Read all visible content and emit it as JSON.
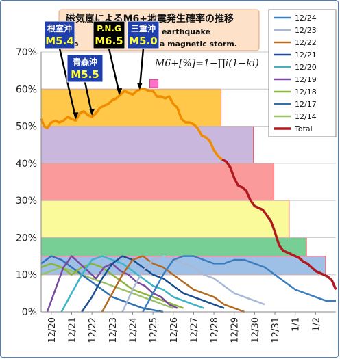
{
  "chart_data": {
    "type": "line",
    "title": "磁気嵐によるM6+地震発生確率の推移",
    "subtitle_lines": [
      "ns",
      "earthquake",
      "rro",
      "by a magnetic storm."
    ],
    "formula": "M6+[%]=1−∏i(1−ki)",
    "x_tick_labels": [
      "12/20",
      "12/21",
      "12/22",
      "12/23",
      "12/24",
      "12/25",
      "12/26",
      "12/27",
      "12/28",
      "12/29",
      "12/30",
      "12/31",
      "1/1",
      "1/2"
    ],
    "y_tick_labels": [
      "0%",
      "10%",
      "20%",
      "30%",
      "40%",
      "50%",
      "60%",
      "70%"
    ],
    "ylim": [
      0,
      70
    ],
    "xlim": [
      0,
      14.5
    ],
    "legend_position": "right",
    "legend": [
      {
        "label": "12/24",
        "color": "#3a7dbf"
      },
      {
        "label": "12/23",
        "color": "#a9b8d6"
      },
      {
        "label": "12/22",
        "color": "#b4691f"
      },
      {
        "label": "12/21",
        "color": "#1a4d8f"
      },
      {
        "label": "12/20",
        "color": "#3cb4c8"
      },
      {
        "label": "12/19",
        "color": "#7a4a9e"
      },
      {
        "label": "12/18",
        "color": "#8cb43c"
      },
      {
        "label": "12/17",
        "color": "#2f6fb4"
      },
      {
        "label": "12/14",
        "color": "#99c266"
      },
      {
        "label": "Total",
        "color": "#b0191e"
      }
    ],
    "bands": [
      {
        "x0": 0,
        "x1": 8.85,
        "y0": 50,
        "y1": 60,
        "fill": "#ffc84a"
      },
      {
        "x0": 0,
        "x1": 10.45,
        "y0": 40,
        "y1": 50,
        "fill": "#c9b7dd"
      },
      {
        "x0": 0,
        "x1": 11.45,
        "y0": 30,
        "y1": 40,
        "fill": "#fb9a9a"
      },
      {
        "x0": 0,
        "x1": 12.2,
        "y0": 20,
        "y1": 30,
        "fill": "#fafa9a"
      },
      {
        "x0": 0,
        "x1": 13.05,
        "y0": 15,
        "y1": 20,
        "fill": "#77cf95"
      },
      {
        "x0": 0,
        "x1": 14.0,
        "y0": 10,
        "y1": 15,
        "fill": "#9fc0e6"
      }
    ],
    "total": {
      "name": "Total",
      "x": [
        0,
        0.15,
        0.3,
        0.5,
        0.7,
        0.9,
        1.1,
        1.3,
        1.5,
        1.7,
        1.9,
        2.1,
        2.3,
        2.5,
        2.7,
        2.9,
        3.1,
        3.3,
        3.5,
        3.7,
        3.9,
        4.1,
        4.3,
        4.5,
        4.7,
        4.9,
        5.1,
        5.3,
        5.5,
        5.7,
        5.9,
        6.1,
        6.3,
        6.5,
        6.7,
        6.9,
        7.1,
        7.3,
        7.5,
        7.7,
        7.9,
        8.1,
        8.3,
        8.5,
        8.7,
        8.9,
        9.1,
        9.3,
        9.5,
        9.7,
        9.9,
        10.1,
        10.3,
        10.5,
        10.7,
        10.9,
        11.1,
        11.3,
        11.5,
        11.7,
        11.9,
        12.1,
        12.3,
        12.5,
        12.7,
        12.9,
        13.1,
        13.3,
        13.5,
        13.7,
        13.9,
        14.1,
        14.3,
        14.5
      ],
      "values": [
        52,
        50,
        49.5,
        51,
        51.5,
        51,
        51.5,
        52.5,
        52,
        51.5,
        53.5,
        54,
        53,
        52.5,
        53.5,
        55,
        55.5,
        56,
        57,
        57.5,
        58.5,
        59.5,
        59,
        58.5,
        59.5,
        60,
        60,
        59.5,
        59.5,
        58,
        58,
        57.5,
        58,
        56,
        55,
        52,
        51,
        51,
        50.5,
        49.5,
        47.5,
        47,
        46,
        43.5,
        42,
        41,
        40.5,
        39,
        36,
        34,
        33.5,
        32.5,
        30,
        28.5,
        28,
        27.5,
        26,
        24.5,
        21.5,
        18,
        16.5,
        16,
        15.5,
        15,
        14.5,
        13.5,
        13,
        12,
        11,
        10.5,
        10,
        9.5,
        8.5,
        6
      ]
    },
    "total_style": {
      "before": "#f08c00",
      "after": "#b0191e",
      "split_x": 8.9
    },
    "series": [
      {
        "name": "12/14",
        "color": "#99c266",
        "x": [
          0,
          0.5,
          1.0,
          1.5,
          2.0,
          2.5,
          3.0,
          3.5,
          4.0,
          4.5,
          5.0,
          5.5,
          6.0,
          6.5
        ],
        "values": [
          10,
          11,
          12,
          11,
          10,
          9,
          8,
          7,
          6,
          5,
          4,
          3,
          2,
          1
        ]
      },
      {
        "name": "12/17",
        "color": "#2f6fb4",
        "x": [
          0,
          0.5,
          1.0,
          1.5,
          2.0,
          2.5,
          3.0,
          3.5,
          4.0,
          4.5,
          5.0,
          5.5,
          6.0
        ],
        "values": [
          13,
          15,
          14,
          12,
          10,
          8,
          6,
          4,
          3,
          2,
          1,
          0.5,
          0
        ]
      },
      {
        "name": "12/18",
        "color": "#8cb43c",
        "x": [
          0,
          0.5,
          1.0,
          1.5,
          2.0,
          2.5,
          3.0,
          3.5,
          4.0,
          4.5,
          5.0,
          5.5,
          6.0,
          6.5,
          7.0
        ],
        "values": [
          12,
          13,
          12,
          10,
          12,
          13,
          12,
          10,
          8,
          6,
          5,
          4,
          3,
          2,
          1
        ]
      },
      {
        "name": "12/19",
        "color": "#7a4a9e",
        "x": [
          0.3,
          0.7,
          1.1,
          1.5,
          1.9,
          2.3,
          2.7,
          3.1,
          3.5,
          3.9,
          4.3,
          4.7,
          5.1,
          5.5,
          5.9,
          6.3,
          6.7
        ],
        "values": [
          0,
          6,
          12,
          15,
          13,
          11,
          9,
          12,
          13,
          11,
          10,
          8,
          7,
          5,
          4,
          2,
          1
        ]
      },
      {
        "name": "12/20",
        "color": "#3cb4c8",
        "x": [
          1.0,
          1.5,
          2.0,
          2.5,
          3.0,
          3.5,
          4.0,
          4.5,
          5.0,
          5.5,
          6.0,
          6.5,
          7.0,
          7.5,
          8.0
        ],
        "values": [
          0,
          5,
          10,
          14,
          15,
          14,
          13,
          11,
          9,
          7,
          6,
          4,
          3,
          2,
          1
        ]
      },
      {
        "name": "12/21",
        "color": "#1a4d8f",
        "x": [
          2.0,
          2.5,
          3.0,
          3.5,
          4.0,
          4.5,
          5.0,
          5.5,
          6.0,
          6.5,
          7.0,
          7.5,
          8.0,
          8.5,
          9.0
        ],
        "values": [
          0,
          4,
          9,
          13,
          15,
          14,
          12,
          10,
          9,
          7,
          5,
          4,
          3,
          2,
          1
        ]
      },
      {
        "name": "12/22",
        "color": "#b4691f",
        "x": [
          3.0,
          3.5,
          4.0,
          4.5,
          5.0,
          5.5,
          6.0,
          6.5,
          7.0,
          7.5,
          8.0,
          8.5,
          9.0,
          9.5,
          10.0
        ],
        "values": [
          0,
          5,
          10,
          14,
          15,
          13,
          12,
          10,
          8,
          6,
          5,
          4,
          2,
          1,
          0
        ]
      },
      {
        "name": "12/23",
        "color": "#a9b8d6",
        "x": [
          4.0,
          4.5,
          5.0,
          5.5,
          6.0,
          6.5,
          7.0,
          7.5,
          8.0,
          8.5,
          9.0,
          9.5,
          10.0,
          10.5,
          11.0
        ],
        "values": [
          0,
          6,
          11,
          14,
          15,
          14,
          13,
          12,
          10,
          9,
          7,
          5,
          4,
          3,
          2
        ]
      },
      {
        "name": "12/24",
        "color": "#3a7dbf",
        "x": [
          5.0,
          5.5,
          6.0,
          6.5,
          7.0,
          7.5,
          8.0,
          8.5,
          9.0,
          9.5,
          10.0,
          10.5,
          11.0,
          11.5,
          12.0,
          12.5,
          13.0,
          13.5,
          14.0,
          14.5
        ],
        "values": [
          0,
          5,
          10,
          14,
          15,
          15,
          14,
          13,
          13,
          14,
          14,
          13,
          12,
          10,
          8,
          6,
          5,
          4,
          3,
          3
        ]
      }
    ],
    "events": [
      {
        "region": "根室沖",
        "magnitude": "M5.4",
        "x": 1.7,
        "y": 51.5,
        "box": "navy"
      },
      {
        "region": "青森沖",
        "magnitude": "M5.5",
        "x": 2.5,
        "y": 52.5,
        "box": "navy"
      },
      {
        "region": "P.N.G",
        "magnitude": "M6.5",
        "x": 3.85,
        "y": 58,
        "box": "black"
      },
      {
        "region": "三重沖",
        "magnitude": "M5.0",
        "x": 4.85,
        "y": 59.5,
        "box": "navy"
      }
    ],
    "marker": {
      "x": 5.55,
      "y": 61.5,
      "color": "#ff6ec7"
    }
  }
}
